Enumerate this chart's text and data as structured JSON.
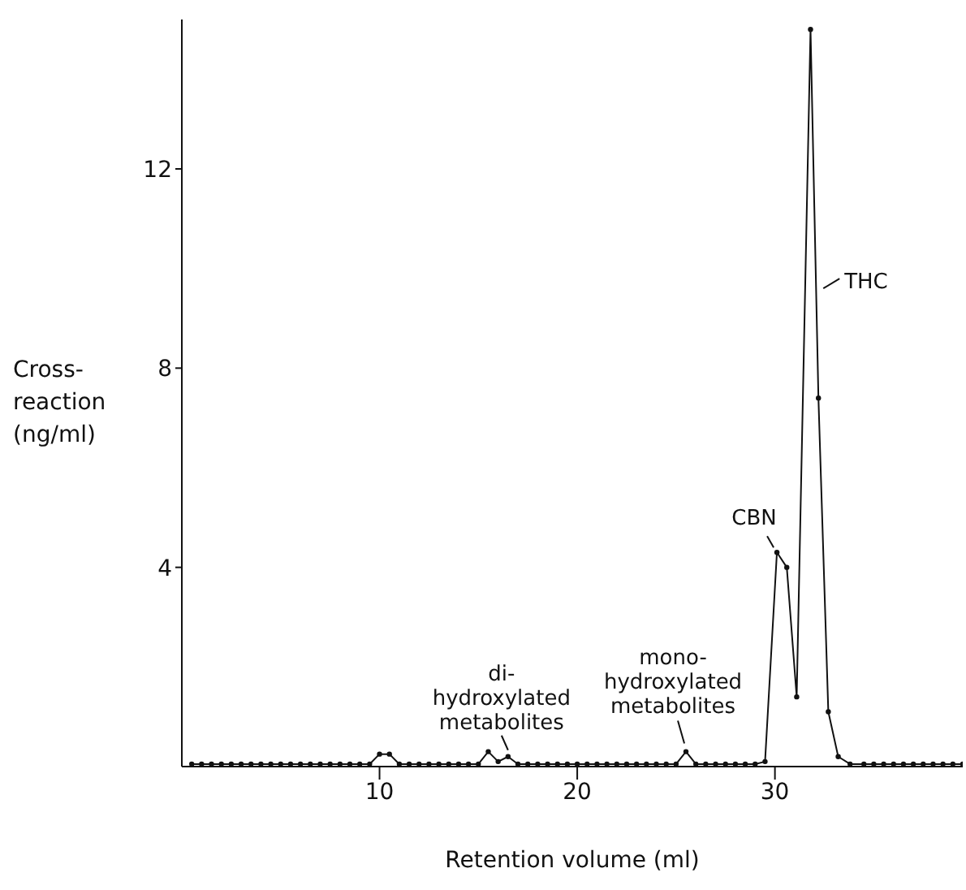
{
  "chart_data": {
    "type": "line",
    "xlabel": "Retention volume (ml)",
    "ylabel": "Cross-\nreaction\n(ng/ml)",
    "x": [
      0.5,
      1,
      1.5,
      2,
      2.5,
      3,
      3.5,
      4,
      4.5,
      5,
      5.5,
      6,
      6.5,
      7,
      7.5,
      8,
      8.5,
      9,
      9.5,
      10,
      10.5,
      11,
      11.5,
      12,
      12.5,
      13,
      13.5,
      14,
      14.5,
      15,
      15.5,
      16,
      16.5,
      17,
      17.5,
      18,
      18.5,
      19,
      19.5,
      20,
      20.5,
      21,
      21.5,
      22,
      22.5,
      23,
      23.5,
      24,
      24.5,
      25,
      25.5,
      26,
      26.5,
      27,
      27.5,
      28,
      28.5,
      29,
      29.5,
      30.1,
      30.6,
      31.1,
      31.8,
      32.2,
      32.7,
      33.2,
      33.8,
      34.5,
      35,
      35.5,
      36,
      36.5,
      37,
      37.5,
      38,
      38.5,
      39,
      39.5
    ],
    "series": [
      {
        "color": "#111111",
        "values": [
          0.05,
          0.05,
          0.05,
          0.05,
          0.05,
          0.05,
          0.05,
          0.05,
          0.05,
          0.05,
          0.05,
          0.05,
          0.05,
          0.05,
          0.05,
          0.05,
          0.05,
          0.05,
          0.05,
          0.25,
          0.25,
          0.05,
          0.05,
          0.05,
          0.05,
          0.05,
          0.05,
          0.05,
          0.05,
          0.05,
          0.3,
          0.1,
          0.2,
          0.05,
          0.05,
          0.05,
          0.05,
          0.05,
          0.05,
          0.05,
          0.05,
          0.05,
          0.05,
          0.05,
          0.05,
          0.05,
          0.05,
          0.05,
          0.05,
          0.05,
          0.3,
          0.05,
          0.05,
          0.05,
          0.05,
          0.05,
          0.05,
          0.05,
          0.1,
          4.3,
          4.0,
          1.4,
          14.8,
          7.4,
          1.1,
          0.2,
          0.05,
          0.05,
          0.05,
          0.05,
          0.05,
          0.05,
          0.05,
          0.05,
          0.05,
          0.05,
          0.05,
          0.05
        ]
      }
    ],
    "xlim": [
      0,
      39.5
    ],
    "xticks": [
      10,
      20,
      30
    ],
    "ylim": [
      0,
      15
    ],
    "yticks": [
      4,
      8,
      12
    ],
    "grid": false,
    "legend": false,
    "marker": "circle",
    "line_style": "solid",
    "annotations": [
      {
        "text": "CBN",
        "x": 30.1,
        "y": 4.3
      },
      {
        "text": "THC",
        "x": 32.2,
        "y": 9.6
      },
      {
        "text": "di-\nhydroxylated\nmetabolites",
        "x": 16.5,
        "y": 0.2
      },
      {
        "text": "mono-\nhydroxylated\nmetabolites",
        "x": 25.5,
        "y": 0.3
      }
    ]
  }
}
